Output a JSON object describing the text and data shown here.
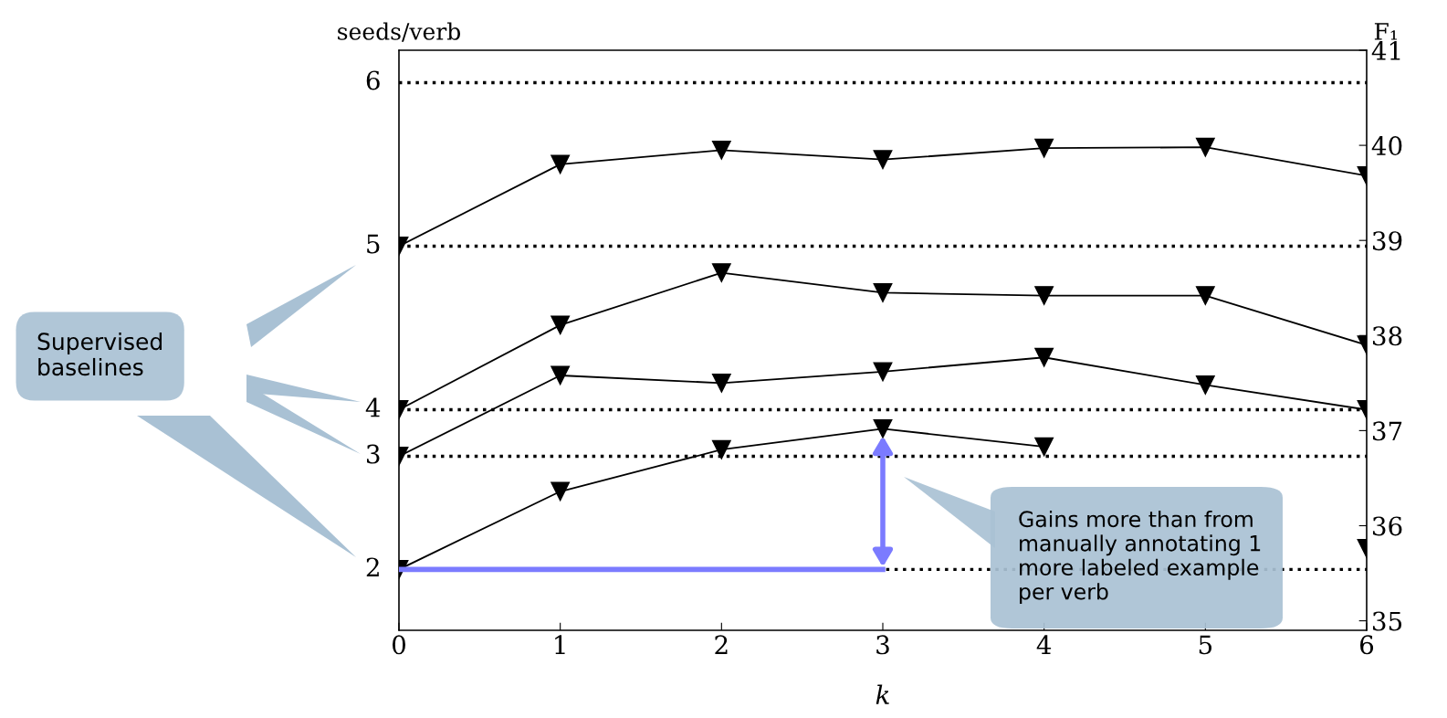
{
  "chart_data": {
    "type": "line",
    "xlabel": "k",
    "ylabel": "seeds/verb",
    "y2label": "F₁",
    "x": [
      0,
      1,
      2,
      3,
      4,
      5,
      6
    ],
    "xlim": [
      0,
      6
    ],
    "xticks": [
      0,
      1,
      2,
      3,
      4,
      5,
      6
    ],
    "y2lim": [
      34.9,
      41.0
    ],
    "y2ticks": [
      35,
      36,
      37,
      38,
      39,
      40,
      41
    ],
    "marker": "triangle",
    "line_style": "solid",
    "grid": false,
    "legend": false,
    "series": [
      {
        "axis": "y2",
        "color": "#000000",
        "values": [
          38.94,
          39.8,
          39.95,
          39.85,
          39.97,
          39.98,
          39.68
        ]
      },
      {
        "axis": "y2",
        "color": "#000000",
        "values": [
          37.22,
          38.11,
          38.66,
          38.45,
          38.42,
          38.42,
          37.9
        ]
      },
      {
        "axis": "y2",
        "color": "#000000",
        "values": [
          36.73,
          37.58,
          37.5,
          37.62,
          37.77,
          37.48,
          37.22
        ]
      },
      {
        "axis": "y2",
        "color": "#000000",
        "values": [
          35.54,
          36.36,
          36.8,
          37.02,
          36.83,
          null,
          35.76
        ]
      }
    ],
    "ref_lines": [
      {
        "axis": "y2",
        "value": 40.66,
        "color": "#000000",
        "line_style": "dotted"
      },
      {
        "axis": "y2",
        "value": 38.94,
        "color": "#000000",
        "line_style": "dotted"
      },
      {
        "axis": "y2",
        "value": 37.22,
        "color": "#000000",
        "line_style": "dotted"
      },
      {
        "axis": "y2",
        "value": 36.73,
        "color": "#000000",
        "line_style": "dotted"
      },
      {
        "axis": "y2",
        "value": 35.54,
        "color": "#000000",
        "line_style": "dotted"
      }
    ],
    "annotations": [
      "Supervised\nbaselines",
      "Gains more than from\nmanually annotating 1\nmore labeled example\nper verb",
      "6",
      "5",
      "4",
      "3",
      "2"
    ]
  }
}
